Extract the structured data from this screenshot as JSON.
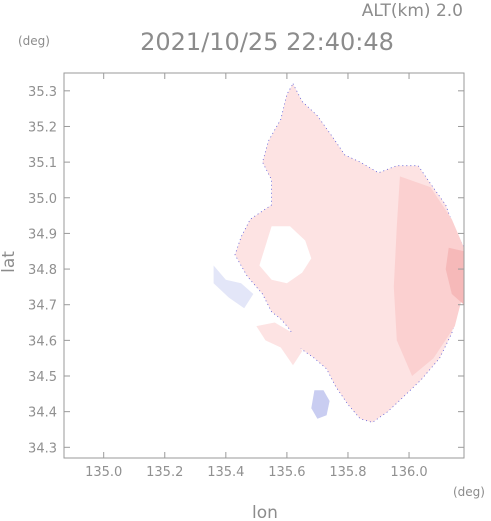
{
  "header": {
    "altitude_label": "ALT(km) 2.0",
    "timestamp": "2021/10/25 22:40:48"
  },
  "chart_data": {
    "type": "heatmap",
    "title": "2021/10/25 22:40:48",
    "subtitle": "ALT(km) 2.0",
    "xlabel": "lon",
    "ylabel": "lat",
    "x_unit": "(deg)",
    "y_unit": "(deg)",
    "xlim": [
      134.87,
      136.18
    ],
    "ylim": [
      34.27,
      35.35
    ],
    "x_ticks": [
      135.0,
      135.2,
      135.4,
      135.6,
      135.8,
      136.0
    ],
    "x_tick_labels": [
      "135.0",
      "135.2",
      "135.4",
      "135.6",
      "135.8",
      "136.0"
    ],
    "y_ticks": [
      34.3,
      34.4,
      34.5,
      34.6,
      34.7,
      34.8,
      34.9,
      35.0,
      35.1,
      35.2,
      35.3
    ],
    "y_tick_labels": [
      "34.3",
      "34.4",
      "34.5",
      "34.6",
      "34.7",
      "34.8",
      "34.9",
      "35.0",
      "35.1",
      "35.2",
      "35.3"
    ],
    "grid": false,
    "colors": {
      "frame": "#9a9a9a",
      "text": "#8c8c8c",
      "positive_light": "#fde3e3",
      "positive_mid": "#fbd0d0",
      "positive_strong": "#f6b9b9",
      "negative_light": "#e3e6f8",
      "negative_mid": "#c9cdf1",
      "edge_blue": "#5a5ad8"
    },
    "regions": [
      {
        "name": "main-echo",
        "sign": "positive",
        "color": "#fde3e3",
        "polygon": [
          [
            135.62,
            35.32
          ],
          [
            135.65,
            35.27
          ],
          [
            135.7,
            35.23
          ],
          [
            135.75,
            35.17
          ],
          [
            135.79,
            35.12
          ],
          [
            135.84,
            35.1
          ],
          [
            135.9,
            35.07
          ],
          [
            135.96,
            35.09
          ],
          [
            136.03,
            35.09
          ],
          [
            136.07,
            35.04
          ],
          [
            136.12,
            34.98
          ],
          [
            136.15,
            34.91
          ],
          [
            136.18,
            34.86
          ],
          [
            136.18,
            34.77
          ],
          [
            136.16,
            34.69
          ],
          [
            136.14,
            34.62
          ],
          [
            136.1,
            34.55
          ],
          [
            136.04,
            34.49
          ],
          [
            135.98,
            34.44
          ],
          [
            135.93,
            34.4
          ],
          [
            135.88,
            34.37
          ],
          [
            135.84,
            34.38
          ],
          [
            135.8,
            34.42
          ],
          [
            135.76,
            34.47
          ],
          [
            135.73,
            34.52
          ],
          [
            135.69,
            34.55
          ],
          [
            135.64,
            34.58
          ],
          [
            135.61,
            34.63
          ],
          [
            135.58,
            34.66
          ],
          [
            135.55,
            34.68
          ],
          [
            135.52,
            34.73
          ],
          [
            135.47,
            34.78
          ],
          [
            135.43,
            34.84
          ],
          [
            135.45,
            34.89
          ],
          [
            135.48,
            34.94
          ],
          [
            135.55,
            34.98
          ],
          [
            135.55,
            35.05
          ],
          [
            135.52,
            35.1
          ],
          [
            135.54,
            35.16
          ],
          [
            135.58,
            35.22
          ],
          [
            135.6,
            35.29
          ]
        ]
      },
      {
        "name": "east-band",
        "sign": "positive",
        "color": "#fbd0d0",
        "polygon": [
          [
            135.97,
            35.06
          ],
          [
            136.07,
            35.03
          ],
          [
            136.14,
            34.94
          ],
          [
            136.18,
            34.86
          ],
          [
            136.18,
            34.74
          ],
          [
            136.15,
            34.64
          ],
          [
            136.08,
            34.55
          ],
          [
            136.01,
            34.5
          ],
          [
            135.96,
            34.6
          ],
          [
            135.95,
            34.75
          ],
          [
            135.96,
            34.92
          ]
        ]
      },
      {
        "name": "east-core",
        "sign": "positive",
        "color": "#f6b9b9",
        "polygon": [
          [
            136.13,
            34.86
          ],
          [
            136.18,
            34.85
          ],
          [
            136.18,
            34.7
          ],
          [
            136.14,
            34.73
          ],
          [
            136.12,
            34.8
          ]
        ]
      },
      {
        "name": "southwest-arc",
        "sign": "positive",
        "color": "#fde3e3",
        "polygon": [
          [
            135.5,
            34.64
          ],
          [
            135.56,
            34.65
          ],
          [
            135.62,
            34.62
          ],
          [
            135.65,
            34.57
          ],
          [
            135.62,
            34.53
          ],
          [
            135.58,
            34.58
          ],
          [
            135.53,
            34.6
          ]
        ]
      },
      {
        "name": "west-cells",
        "sign": "negative",
        "color": "#e3e6f8",
        "polygon": [
          [
            135.36,
            34.81
          ],
          [
            135.4,
            34.77
          ],
          [
            135.45,
            34.76
          ],
          [
            135.49,
            34.73
          ],
          [
            135.46,
            34.69
          ],
          [
            135.41,
            34.72
          ],
          [
            135.36,
            34.76
          ]
        ]
      },
      {
        "name": "south-cell",
        "sign": "negative",
        "color": "#c9cdf1",
        "polygon": [
          [
            135.69,
            34.46
          ],
          [
            135.72,
            34.46
          ],
          [
            135.74,
            34.43
          ],
          [
            135.73,
            34.39
          ],
          [
            135.7,
            34.38
          ],
          [
            135.68,
            34.41
          ]
        ]
      },
      {
        "name": "clear-gap",
        "sign": "none",
        "color": "#ffffff",
        "polygon": [
          [
            135.55,
            34.92
          ],
          [
            135.61,
            34.92
          ],
          [
            135.66,
            34.88
          ],
          [
            135.68,
            34.83
          ],
          [
            135.65,
            34.79
          ],
          [
            135.6,
            34.76
          ],
          [
            135.55,
            34.77
          ],
          [
            135.51,
            34.81
          ]
        ]
      }
    ]
  }
}
